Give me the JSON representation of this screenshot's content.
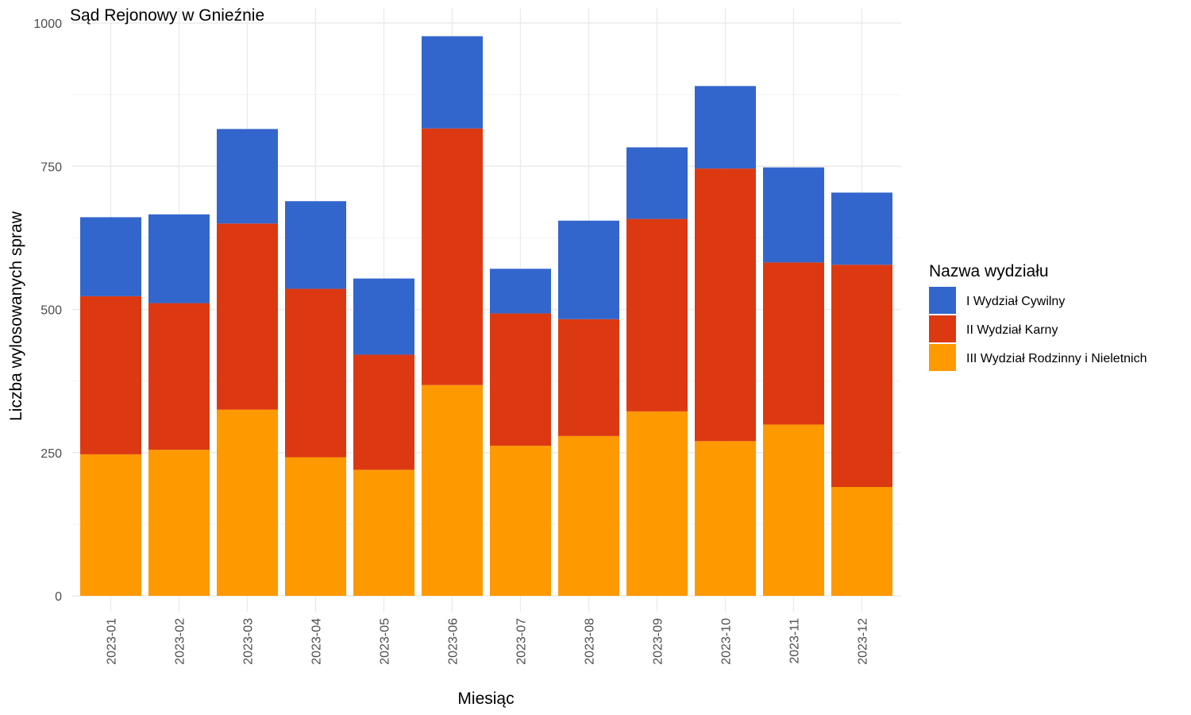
{
  "chart_data": {
    "type": "bar",
    "stacked": true,
    "title": "Sąd Rejonowy w Gnieźnie",
    "xlabel": "Miesiąc",
    "ylabel": "Liczba wylosowanych spraw",
    "ylim": [
      0,
      1000
    ],
    "yticks": [
      "0",
      "250",
      "500",
      "750",
      "1000"
    ],
    "grid": true,
    "categories": [
      "2023-01",
      "2023-02",
      "2023-03",
      "2023-04",
      "2023-05",
      "2023-06",
      "2023-07",
      "2023-08",
      "2023-09",
      "2023-10",
      "2023-11",
      "2023-12"
    ],
    "series": [
      {
        "name": "III Wydział Rodzinny i Nieletnich",
        "color": "#FF9900",
        "values": [
          247,
          255,
          325,
          242,
          220,
          368,
          262,
          279,
          322,
          270,
          299,
          190
        ]
      },
      {
        "name": "II Wydział Karny",
        "color": "#DC3912",
        "values": [
          276,
          256,
          325,
          294,
          201,
          448,
          231,
          204,
          336,
          476,
          283,
          388
        ]
      },
      {
        "name": "I Wydział Cywilny",
        "color": "#3366CC",
        "values": [
          138,
          155,
          165,
          153,
          133,
          161,
          78,
          172,
          125,
          144,
          166,
          126
        ]
      }
    ],
    "legend": {
      "title": "Nazwa wydziału",
      "position": "right",
      "order": [
        "I Wydział Cywilny",
        "II Wydział Karny",
        "III Wydział Rodzinny i Nieletnich"
      ]
    }
  }
}
